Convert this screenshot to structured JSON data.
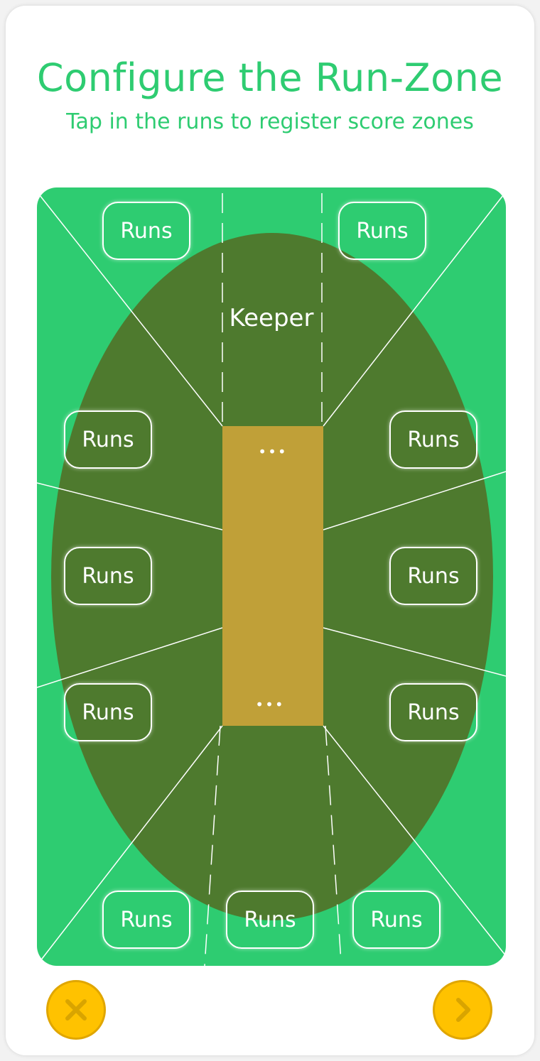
{
  "header": {
    "title": "Configure the Run-Zone",
    "subtitle": "Tap in the runs to register score zones"
  },
  "field": {
    "keeper_label": "Keeper",
    "pitch_top_dots": "•••",
    "pitch_bottom_dots": "•••",
    "zones": [
      {
        "id": "top-left",
        "label": "Runs"
      },
      {
        "id": "top-right",
        "label": "Runs"
      },
      {
        "id": "upper-left",
        "label": "Runs"
      },
      {
        "id": "upper-right",
        "label": "Runs"
      },
      {
        "id": "mid-left",
        "label": "Runs"
      },
      {
        "id": "mid-right",
        "label": "Runs"
      },
      {
        "id": "lower-left",
        "label": "Runs"
      },
      {
        "id": "lower-right",
        "label": "Runs"
      },
      {
        "id": "bottom-left",
        "label": "Runs"
      },
      {
        "id": "bottom-center",
        "label": "Runs"
      },
      {
        "id": "bottom-right",
        "label": "Runs"
      }
    ]
  },
  "footer": {
    "cancel_icon": "close-icon",
    "next_icon": "chevron-right-icon"
  },
  "colors": {
    "accent": "#2ecc71",
    "outfield": "#2ecc71",
    "infield": "#4e7a2e",
    "pitch": "#c0a038",
    "button": "#ffc200",
    "button_icon": "#d9a400"
  }
}
